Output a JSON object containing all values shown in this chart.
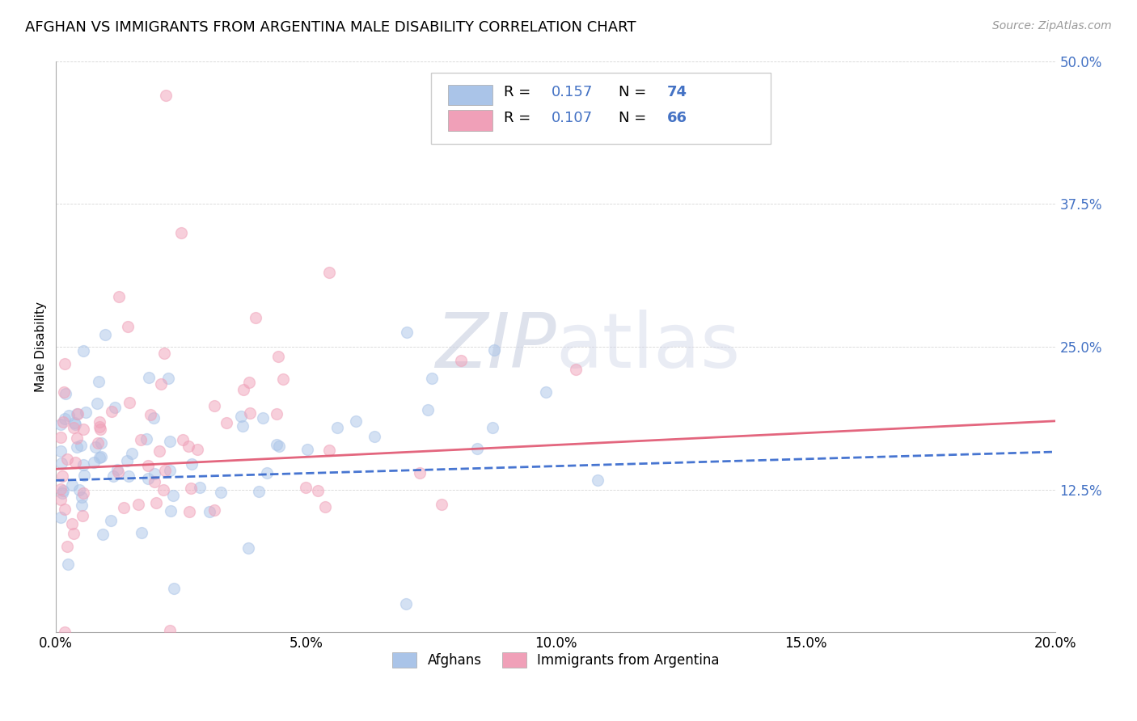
{
  "title": "AFGHAN VS IMMIGRANTS FROM ARGENTINA MALE DISABILITY CORRELATION CHART",
  "source": "Source: ZipAtlas.com",
  "ylabel": "Male Disability",
  "x_min": 0.0,
  "x_max": 0.2,
  "y_min": 0.0,
  "y_max": 0.5,
  "y_ticks": [
    0.0,
    0.125,
    0.25,
    0.375,
    0.5
  ],
  "y_tick_labels": [
    "",
    "12.5%",
    "25.0%",
    "37.5%",
    "50.0%"
  ],
  "x_ticks": [
    0.0,
    0.05,
    0.1,
    0.15,
    0.2
  ],
  "x_tick_labels": [
    "0.0%",
    "5.0%",
    "10.0%",
    "15.0%",
    "20.0%"
  ],
  "afghan_color": "#aac4e8",
  "argentina_color": "#f0a0b8",
  "afghan_line_color": "#3366cc",
  "argentina_line_color": "#e05570",
  "afghan_line_style": "--",
  "argentina_line_style": "-",
  "legend_R1": "0.157",
  "legend_N1": "74",
  "legend_R2": "0.107",
  "legend_N2": "66",
  "legend_color": "#4472c4",
  "watermark_text": "ZIPatlas",
  "watermark_color": "#d8dce8",
  "background_color": "#ffffff",
  "grid_color": "#cccccc",
  "tick_color": "#4472c4",
  "title_fontsize": 13,
  "source_fontsize": 10,
  "tick_fontsize": 12,
  "ylabel_fontsize": 11,
  "scatter_size": 100,
  "scatter_alpha": 0.5,
  "scatter_edgewidth": 1.0
}
